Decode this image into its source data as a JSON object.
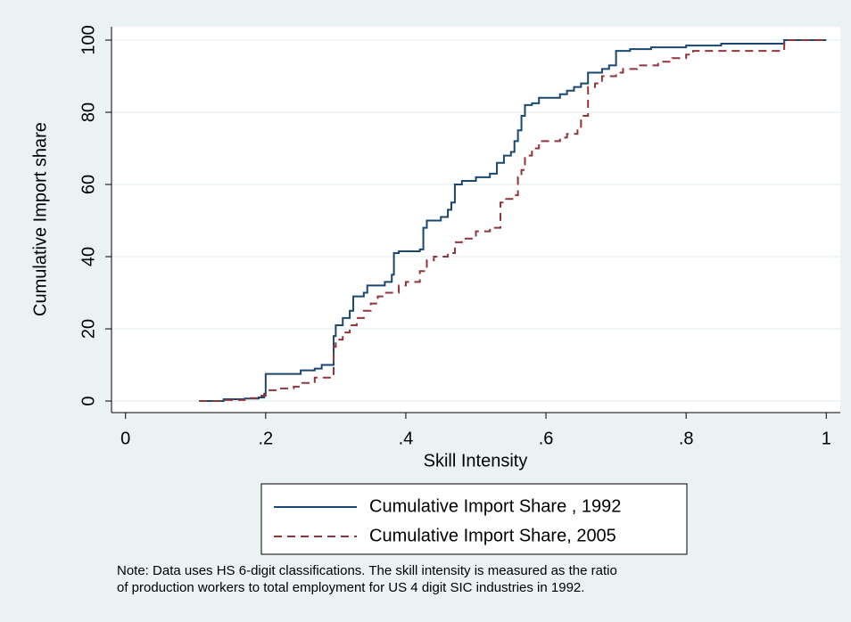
{
  "chart_data": {
    "type": "line",
    "step": true,
    "xlabel": "Skill Intensity",
    "ylabel": "Cumulative Import share",
    "xlim": [
      -0.02,
      1.02
    ],
    "ylim": [
      -3.2,
      103.7
    ],
    "xticks": [
      0,
      {
        "value": 0.2,
        "label": ".2"
      },
      {
        "value": 0.4,
        "label": ".4"
      },
      {
        "value": 0.6,
        "label": ".6"
      },
      {
        "value": 0.8,
        "label": ".8"
      },
      1
    ],
    "yticks": [
      0,
      20,
      40,
      60,
      80,
      100
    ],
    "grid": true,
    "series": [
      {
        "name": "Cumulative Import Share , 1992",
        "color": "#1a476f",
        "dash": false,
        "x": [
          0.105,
          0.13,
          0.14,
          0.17,
          0.19,
          0.198,
          0.2,
          0.22,
          0.25,
          0.27,
          0.28,
          0.295,
          0.297,
          0.3,
          0.31,
          0.32,
          0.325,
          0.34,
          0.345,
          0.37,
          0.38,
          0.383,
          0.39,
          0.42,
          0.425,
          0.43,
          0.45,
          0.46,
          0.465,
          0.47,
          0.48,
          0.5,
          0.52,
          0.53,
          0.54,
          0.55,
          0.555,
          0.56,
          0.565,
          0.57,
          0.58,
          0.59,
          0.62,
          0.63,
          0.64,
          0.65,
          0.66,
          0.68,
          0.69,
          0.7,
          0.72,
          0.75,
          0.8,
          0.85,
          0.93,
          0.94,
          1.0
        ],
        "values": [
          0,
          0,
          0.5,
          0.7,
          1,
          2,
          7.5,
          7.5,
          8.5,
          9,
          10,
          10,
          18,
          21,
          23,
          25,
          29,
          30,
          32,
          33,
          35,
          41,
          41.5,
          42,
          48,
          50,
          51,
          53,
          55,
          60,
          61,
          62,
          63,
          66,
          68,
          69,
          72,
          75,
          79,
          82,
          82.5,
          84,
          85,
          86,
          87,
          88,
          91,
          92,
          93,
          97,
          97.5,
          98,
          98.5,
          99,
          99,
          100,
          100
        ]
      },
      {
        "name": "Cumulative Import Share, 2005",
        "color": "#90353b",
        "dash": true,
        "x": [
          0.105,
          0.14,
          0.17,
          0.19,
          0.2,
          0.22,
          0.24,
          0.25,
          0.27,
          0.295,
          0.297,
          0.3,
          0.31,
          0.32,
          0.33,
          0.34,
          0.35,
          0.36,
          0.37,
          0.39,
          0.4,
          0.42,
          0.43,
          0.44,
          0.46,
          0.47,
          0.48,
          0.5,
          0.52,
          0.535,
          0.54,
          0.555,
          0.56,
          0.565,
          0.57,
          0.58,
          0.59,
          0.62,
          0.63,
          0.645,
          0.65,
          0.66,
          0.67,
          0.68,
          0.7,
          0.71,
          0.73,
          0.76,
          0.78,
          0.8,
          0.81,
          0.85,
          0.93,
          0.94,
          1.0
        ],
        "values": [
          0,
          0.3,
          0.8,
          1.5,
          3,
          3.5,
          4,
          5,
          6.5,
          7,
          15,
          17,
          19,
          21,
          23,
          25,
          27,
          29,
          30,
          32,
          33,
          36,
          39,
          40,
          41,
          44,
          45,
          47,
          48,
          55,
          56,
          57,
          62,
          64,
          68,
          70,
          72,
          73,
          74,
          76,
          79,
          87,
          88,
          90,
          91,
          92,
          93,
          94,
          95,
          96,
          97,
          97,
          97,
          100,
          100
        ]
      }
    ],
    "note": [
      "Note:  Data uses HS 6-digit classifications. The skill intensity is measured as the ratio",
      "of production workers to total employment for US 4 digit SIC industries in 1992."
    ]
  }
}
